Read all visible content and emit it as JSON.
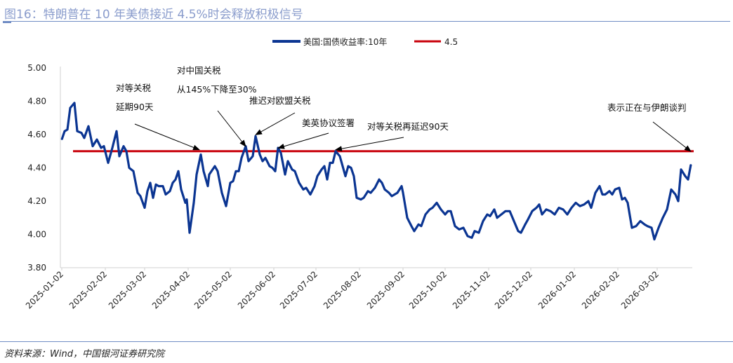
{
  "title": "图16：特朗普在 10 年美债接近 4.5%时会释放积极信号",
  "source": "资料来源：Wind，中国银河证券研究院",
  "chart_data": {
    "type": "line",
    "title": "",
    "xlabel": "",
    "ylabel": "",
    "ylim": [
      3.8,
      5.0
    ],
    "yticks": [
      "3.80",
      "4.00",
      "4.20",
      "4.40",
      "4.60",
      "4.80",
      "5.00"
    ],
    "xticks": [
      "2025-01-02",
      "2025-02-02",
      "2025-03-02",
      "2025-04-02",
      "2025-05-02",
      "2025-06-02",
      "2025-07-02",
      "2025-08-02",
      "2025-09-02",
      "2025-10-02",
      "2025-11-02",
      "2025-12-02",
      "2026-01-02",
      "2026-02-02",
      "2026-03-02"
    ],
    "grid": false,
    "legend": "top",
    "colors": {
      "yield": "#0b3592",
      "threshold": "#c8000a"
    },
    "series": [
      {
        "name": "美国:国债收益率:10年",
        "data": [
          [
            "2025-01-02",
            4.57
          ],
          [
            "2025-01-04",
            4.62
          ],
          [
            "2025-01-06",
            4.63
          ],
          [
            "2025-01-08",
            4.76
          ],
          [
            "2025-01-11",
            4.79
          ],
          [
            "2025-01-13",
            4.62
          ],
          [
            "2025-01-16",
            4.61
          ],
          [
            "2025-01-18",
            4.58
          ],
          [
            "2025-01-21",
            4.65
          ],
          [
            "2025-01-24",
            4.53
          ],
          [
            "2025-01-27",
            4.57
          ],
          [
            "2025-01-30",
            4.52
          ],
          [
            "2025-02-01",
            4.53
          ],
          [
            "2025-02-04",
            4.43
          ],
          [
            "2025-02-07",
            4.52
          ],
          [
            "2025-02-10",
            4.62
          ],
          [
            "2025-02-12",
            4.47
          ],
          [
            "2025-02-15",
            4.53
          ],
          [
            "2025-02-17",
            4.5
          ],
          [
            "2025-02-19",
            4.4
          ],
          [
            "2025-02-22",
            4.38
          ],
          [
            "2025-02-25",
            4.25
          ],
          [
            "2025-02-27",
            4.23
          ],
          [
            "2025-03-02",
            4.16
          ],
          [
            "2025-03-04",
            4.26
          ],
          [
            "2025-03-06",
            4.31
          ],
          [
            "2025-03-08",
            4.22
          ],
          [
            "2025-03-10",
            4.3
          ],
          [
            "2025-03-12",
            4.29
          ],
          [
            "2025-03-15",
            4.29
          ],
          [
            "2025-03-17",
            4.24
          ],
          [
            "2025-03-20",
            4.26
          ],
          [
            "2025-03-22",
            4.31
          ],
          [
            "2025-03-24",
            4.33
          ],
          [
            "2025-03-26",
            4.38
          ],
          [
            "2025-03-28",
            4.27
          ],
          [
            "2025-03-31",
            4.19
          ],
          [
            "2025-04-01",
            4.21
          ],
          [
            "2025-04-03",
            4.01
          ],
          [
            "2025-04-06",
            4.19
          ],
          [
            "2025-04-08",
            4.36
          ],
          [
            "2025-04-11",
            4.48
          ],
          [
            "2025-04-13",
            4.38
          ],
          [
            "2025-04-16",
            4.29
          ],
          [
            "2025-04-17",
            4.36
          ],
          [
            "2025-04-21",
            4.41
          ],
          [
            "2025-04-23",
            4.38
          ],
          [
            "2025-04-26",
            4.25
          ],
          [
            "2025-04-29",
            4.17
          ],
          [
            "2025-05-02",
            4.31
          ],
          [
            "2025-05-04",
            4.32
          ],
          [
            "2025-05-06",
            4.38
          ],
          [
            "2025-05-08",
            4.38
          ],
          [
            "2025-05-10",
            4.46
          ],
          [
            "2025-05-13",
            4.53
          ],
          [
            "2025-05-15",
            4.44
          ],
          [
            "2025-05-18",
            4.47
          ],
          [
            "2025-05-20",
            4.59
          ],
          [
            "2025-05-23",
            4.48
          ],
          [
            "2025-05-25",
            4.44
          ],
          [
            "2025-05-27",
            4.46
          ],
          [
            "2025-05-30",
            4.41
          ],
          [
            "2025-06-01",
            4.4
          ],
          [
            "2025-06-03",
            4.38
          ],
          [
            "2025-06-05",
            4.52
          ],
          [
            "2025-06-07",
            4.49
          ],
          [
            "2025-06-10",
            4.36
          ],
          [
            "2025-06-12",
            4.44
          ],
          [
            "2025-06-15",
            4.39
          ],
          [
            "2025-06-17",
            4.38
          ],
          [
            "2025-06-20",
            4.31
          ],
          [
            "2025-06-23",
            4.27
          ],
          [
            "2025-06-25",
            4.28
          ],
          [
            "2025-06-28",
            4.24
          ],
          [
            "2025-07-01",
            4.29
          ],
          [
            "2025-07-03",
            4.35
          ],
          [
            "2025-07-06",
            4.39
          ],
          [
            "2025-07-08",
            4.41
          ],
          [
            "2025-07-10",
            4.33
          ],
          [
            "2025-07-12",
            4.43
          ],
          [
            "2025-07-14",
            4.43
          ],
          [
            "2025-07-16",
            4.5
          ],
          [
            "2025-07-19",
            4.47
          ],
          [
            "2025-07-21",
            4.41
          ],
          [
            "2025-07-23",
            4.35
          ],
          [
            "2025-07-25",
            4.41
          ],
          [
            "2025-07-27",
            4.4
          ],
          [
            "2025-07-29",
            4.35
          ],
          [
            "2025-07-31",
            4.22
          ],
          [
            "2025-08-03",
            4.21
          ],
          [
            "2025-08-05",
            4.22
          ],
          [
            "2025-08-08",
            4.26
          ],
          [
            "2025-08-10",
            4.25
          ],
          [
            "2025-08-13",
            4.28
          ],
          [
            "2025-08-16",
            4.33
          ],
          [
            "2025-08-18",
            4.31
          ],
          [
            "2025-08-20",
            4.27
          ],
          [
            "2025-08-23",
            4.25
          ],
          [
            "2025-08-25",
            4.23
          ],
          [
            "2025-08-29",
            4.25
          ],
          [
            "2025-09-01",
            4.29
          ],
          [
            "2025-09-02",
            4.25
          ],
          [
            "2025-09-05",
            4.1
          ],
          [
            "2025-09-08",
            4.05
          ],
          [
            "2025-09-10",
            4.02
          ],
          [
            "2025-09-13",
            4.06
          ],
          [
            "2025-09-15",
            4.05
          ],
          [
            "2025-09-18",
            4.12
          ],
          [
            "2025-09-21",
            4.15
          ],
          [
            "2025-09-23",
            4.16
          ],
          [
            "2025-09-26",
            4.19
          ],
          [
            "2025-09-29",
            4.15
          ],
          [
            "2025-10-02",
            4.12
          ],
          [
            "2025-10-04",
            4.14
          ],
          [
            "2025-10-06",
            4.14
          ],
          [
            "2025-10-09",
            4.05
          ],
          [
            "2025-10-12",
            4.03
          ],
          [
            "2025-10-15",
            4.04
          ],
          [
            "2025-10-18",
            3.99
          ],
          [
            "2025-10-21",
            3.98
          ],
          [
            "2025-10-23",
            4.02
          ],
          [
            "2025-10-26",
            4.01
          ],
          [
            "2025-10-29",
            4.08
          ],
          [
            "2025-11-01",
            4.12
          ],
          [
            "2025-11-03",
            4.11
          ],
          [
            "2025-11-06",
            4.15
          ],
          [
            "2025-11-08",
            4.1
          ],
          [
            "2025-11-11",
            4.12
          ],
          [
            "2025-11-14",
            4.14
          ],
          [
            "2025-11-17",
            4.14
          ],
          [
            "2025-11-20",
            4.08
          ],
          [
            "2025-11-23",
            4.02
          ],
          [
            "2025-11-25",
            4.01
          ],
          [
            "2025-11-28",
            4.06
          ],
          [
            "2025-11-30",
            4.09
          ],
          [
            "2025-12-03",
            4.14
          ],
          [
            "2025-12-06",
            4.16
          ],
          [
            "2025-12-08",
            4.18
          ],
          [
            "2025-12-10",
            4.12
          ],
          [
            "2025-12-13",
            4.15
          ],
          [
            "2025-12-16",
            4.14
          ],
          [
            "2025-12-19",
            4.12
          ],
          [
            "2025-12-22",
            4.16
          ],
          [
            "2025-12-25",
            4.15
          ],
          [
            "2025-12-28",
            4.12
          ],
          [
            "2025-12-31",
            4.16
          ],
          [
            "2026-01-03",
            4.19
          ],
          [
            "2026-01-06",
            4.17
          ],
          [
            "2026-01-09",
            4.18
          ],
          [
            "2026-01-12",
            4.2
          ],
          [
            "2026-01-14",
            4.16
          ],
          [
            "2026-01-17",
            4.25
          ],
          [
            "2026-01-20",
            4.29
          ],
          [
            "2026-01-22",
            4.24
          ],
          [
            "2026-01-24",
            4.24
          ],
          [
            "2026-01-27",
            4.26
          ],
          [
            "2026-01-29",
            4.24
          ],
          [
            "2026-01-31",
            4.27
          ],
          [
            "2026-02-03",
            4.28
          ],
          [
            "2026-02-05",
            4.21
          ],
          [
            "2026-02-07",
            4.22
          ],
          [
            "2026-02-09",
            4.19
          ],
          [
            "2026-02-12",
            4.04
          ],
          [
            "2026-02-15",
            4.05
          ],
          [
            "2026-02-18",
            4.08
          ],
          [
            "2026-02-21",
            4.06
          ],
          [
            "2026-02-23",
            4.05
          ],
          [
            "2026-02-26",
            4.04
          ],
          [
            "2026-02-28",
            3.97
          ],
          [
            "2026-03-03",
            4.04
          ],
          [
            "2026-03-06",
            4.1
          ],
          [
            "2026-03-09",
            4.15
          ],
          [
            "2026-03-12",
            4.27
          ],
          [
            "2026-03-15",
            4.24
          ],
          [
            "2026-03-17",
            4.2
          ],
          [
            "2026-03-19",
            4.39
          ],
          [
            "2026-03-22",
            4.35
          ],
          [
            "2026-03-24",
            4.33
          ],
          [
            "2026-03-26",
            4.42
          ]
        ]
      },
      {
        "name": "4.5",
        "value": 4.5,
        "from": "2025-01-16",
        "to": "2026-03-26"
      }
    ],
    "annotations": [
      {
        "lines": [
          "对等关税",
          "延期90天"
        ],
        "target": [
          "2025-04-10",
          4.5
        ]
      },
      {
        "lines": [
          "对中国关税",
          "从145%下降至30%"
        ],
        "target": [
          "2025-05-13",
          4.52
        ]
      },
      {
        "lines": [
          "推迟对欧盟关税"
        ],
        "target": [
          "2025-05-20",
          4.59
        ]
      },
      {
        "lines": [
          "美英协议签署"
        ],
        "target": [
          "2025-06-05",
          4.51
        ]
      },
      {
        "lines": [
          "对等关税再延迟90天"
        ],
        "target": [
          "2025-07-16",
          4.5
        ]
      },
      {
        "lines": [
          "表示正在与伊朗谈判"
        ],
        "target": [
          "2026-03-26",
          4.49
        ]
      }
    ]
  }
}
